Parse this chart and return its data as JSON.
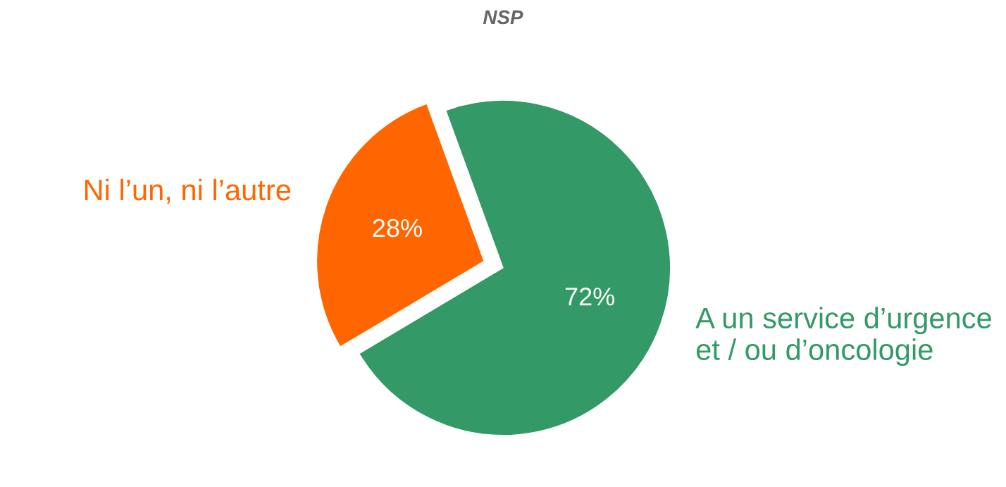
{
  "chart_data": {
    "type": "pie",
    "title": "NSP",
    "categories": [
      "A un service d’urgence\net / ou d’oncologie",
      "Ni l’un, ni l’autre"
    ],
    "values": [
      72,
      28
    ],
    "colors": [
      "#339966",
      "#ff6600"
    ],
    "value_labels": [
      "72%",
      "28%"
    ]
  }
}
